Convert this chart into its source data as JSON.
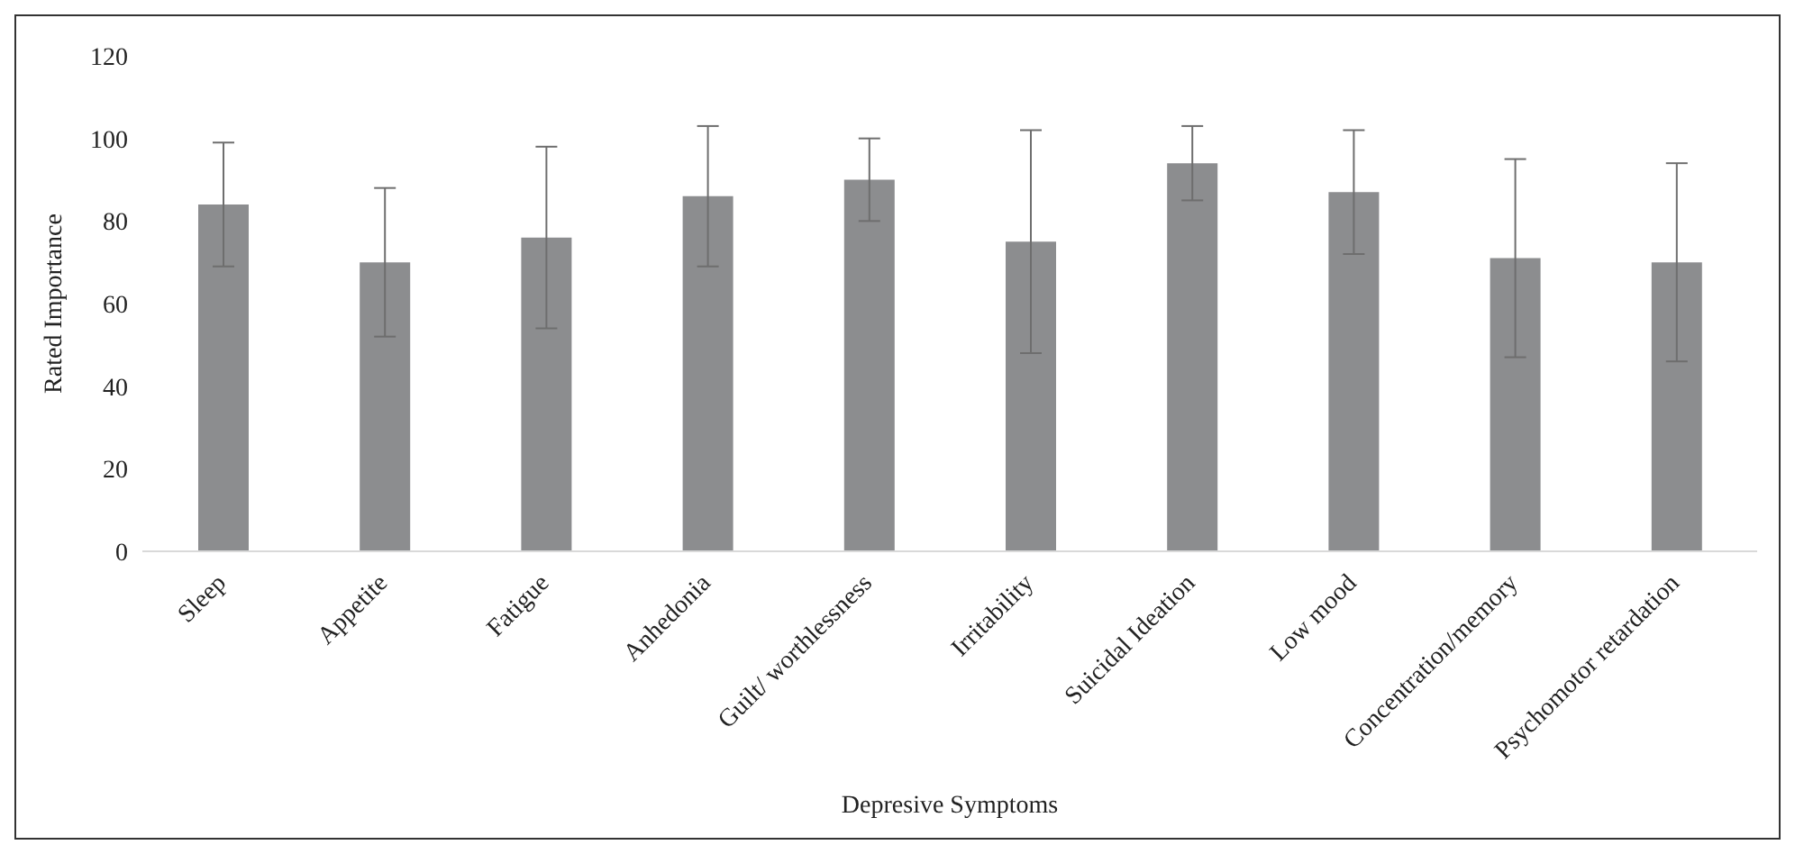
{
  "chart_data": {
    "type": "bar",
    "xlabel": "Depresive Symptoms",
    "ylabel": "Rated Importance",
    "categories": [
      "Sleep",
      "Appetite",
      "Fatigue",
      "Anhedonia",
      "Guilt/ worthlessness",
      "Irritability",
      "Suicidal Ideation",
      "Low mood",
      "Concentration/memory",
      "Psychomotor retardation"
    ],
    "values": [
      84,
      70,
      76,
      86,
      90,
      75,
      94,
      87,
      71,
      70
    ],
    "errors": [
      15,
      18,
      22,
      17,
      10,
      27,
      9,
      15,
      24,
      24
    ],
    "color": "#8c8d8f",
    "ylim": [
      0,
      120
    ],
    "yticks": [
      0,
      20,
      40,
      60,
      80,
      100,
      120
    ]
  }
}
